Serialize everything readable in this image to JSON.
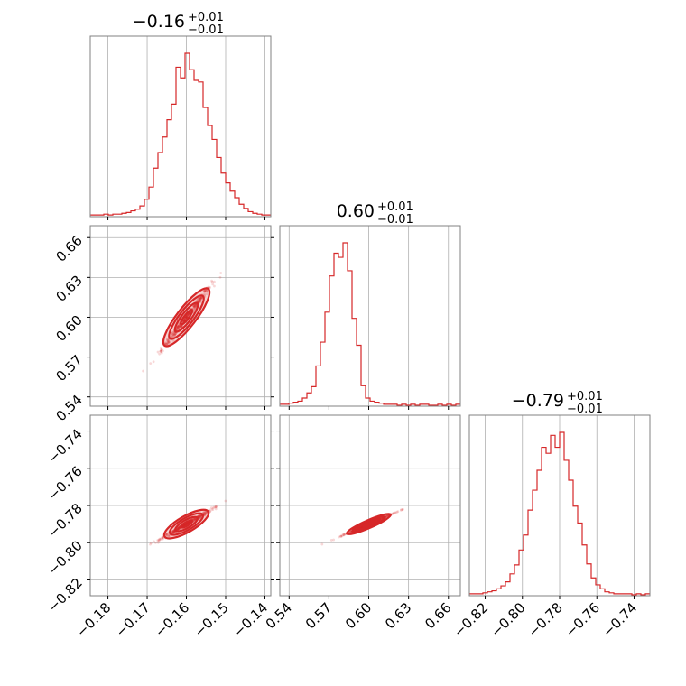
{
  "chart_data": {
    "type": "corner",
    "color": "#d62728",
    "grid": true,
    "parameters": [
      {
        "median": -0.16,
        "title_value": "−0.16",
        "title_plus": "+0.01",
        "title_minus": "−0.01",
        "range": [
          -0.1845,
          -0.1385
        ]
      },
      {
        "median": 0.6,
        "title_value": "0.60",
        "title_plus": "+0.01",
        "title_minus": "−0.01",
        "range": [
          0.533,
          0.669
        ]
      },
      {
        "median": -0.79,
        "title_value": "−0.79",
        "title_plus": "+0.01",
        "title_minus": "−0.01",
        "range": [
          -0.8285,
          -0.7315
        ]
      }
    ],
    "ticks": [
      {
        "values": [
          -0.18,
          -0.17,
          -0.16,
          -0.15,
          -0.14
        ],
        "labels": [
          "−0.18",
          "−0.17",
          "−0.16",
          "−0.15",
          "−0.14"
        ]
      },
      {
        "values": [
          0.54,
          0.57,
          0.6,
          0.63,
          0.66
        ],
        "labels": [
          "0.54",
          "0.57",
          "0.60",
          "0.63",
          "0.66"
        ]
      },
      {
        "values": [
          -0.82,
          -0.8,
          -0.78,
          -0.76,
          -0.74
        ],
        "labels": [
          "−0.82",
          "−0.80",
          "−0.78",
          "−0.76",
          "−0.74"
        ]
      }
    ],
    "histograms": [
      {
        "bin_start": -0.1845,
        "bin_width": 0.00115,
        "counts": [
          1,
          1,
          1,
          2,
          1,
          2,
          2,
          3,
          4,
          6,
          8,
          12,
          20,
          35,
          58,
          77,
          96,
          117,
          136,
          181,
          168,
          198,
          178,
          165,
          163,
          132,
          110,
          93,
          71,
          52,
          40,
          30,
          22,
          14,
          9,
          5,
          3,
          2,
          1,
          1
        ]
      },
      {
        "bin_start": 0.533,
        "bin_width": 0.0034,
        "counts": [
          1,
          1,
          2,
          3,
          4,
          7,
          12,
          18,
          38,
          61,
          90,
          125,
          147,
          143,
          157,
          130,
          84,
          58,
          19,
          7,
          4,
          3,
          2,
          1,
          1,
          1,
          0,
          1,
          0,
          1,
          0,
          1,
          1,
          0,
          0,
          1,
          0,
          1,
          0,
          1
        ]
      },
      {
        "bin_start": -0.8285,
        "bin_width": 0.002425,
        "counts": [
          1,
          1,
          1,
          2,
          3,
          4,
          6,
          9,
          13,
          21,
          30,
          45,
          60,
          85,
          105,
          125,
          148,
          142,
          160,
          148,
          163,
          135,
          115,
          89,
          72,
          50,
          31,
          17,
          10,
          6,
          3,
          2,
          1,
          1,
          1,
          1,
          0,
          1,
          0,
          1
        ]
      }
    ],
    "pairs": [
      {
        "x_param": 0,
        "y_param": 1,
        "slope": 3.84,
        "corr": 0.985
      },
      {
        "x_param": 0,
        "y_param": 2,
        "slope": 1.2,
        "corr": 0.98
      },
      {
        "x_param": 1,
        "y_param": 2,
        "slope": 0.31,
        "corr": 0.998
      }
    ],
    "contour_levels_sigma": [
      0.5,
      1.0,
      1.5,
      2.0
    ]
  }
}
